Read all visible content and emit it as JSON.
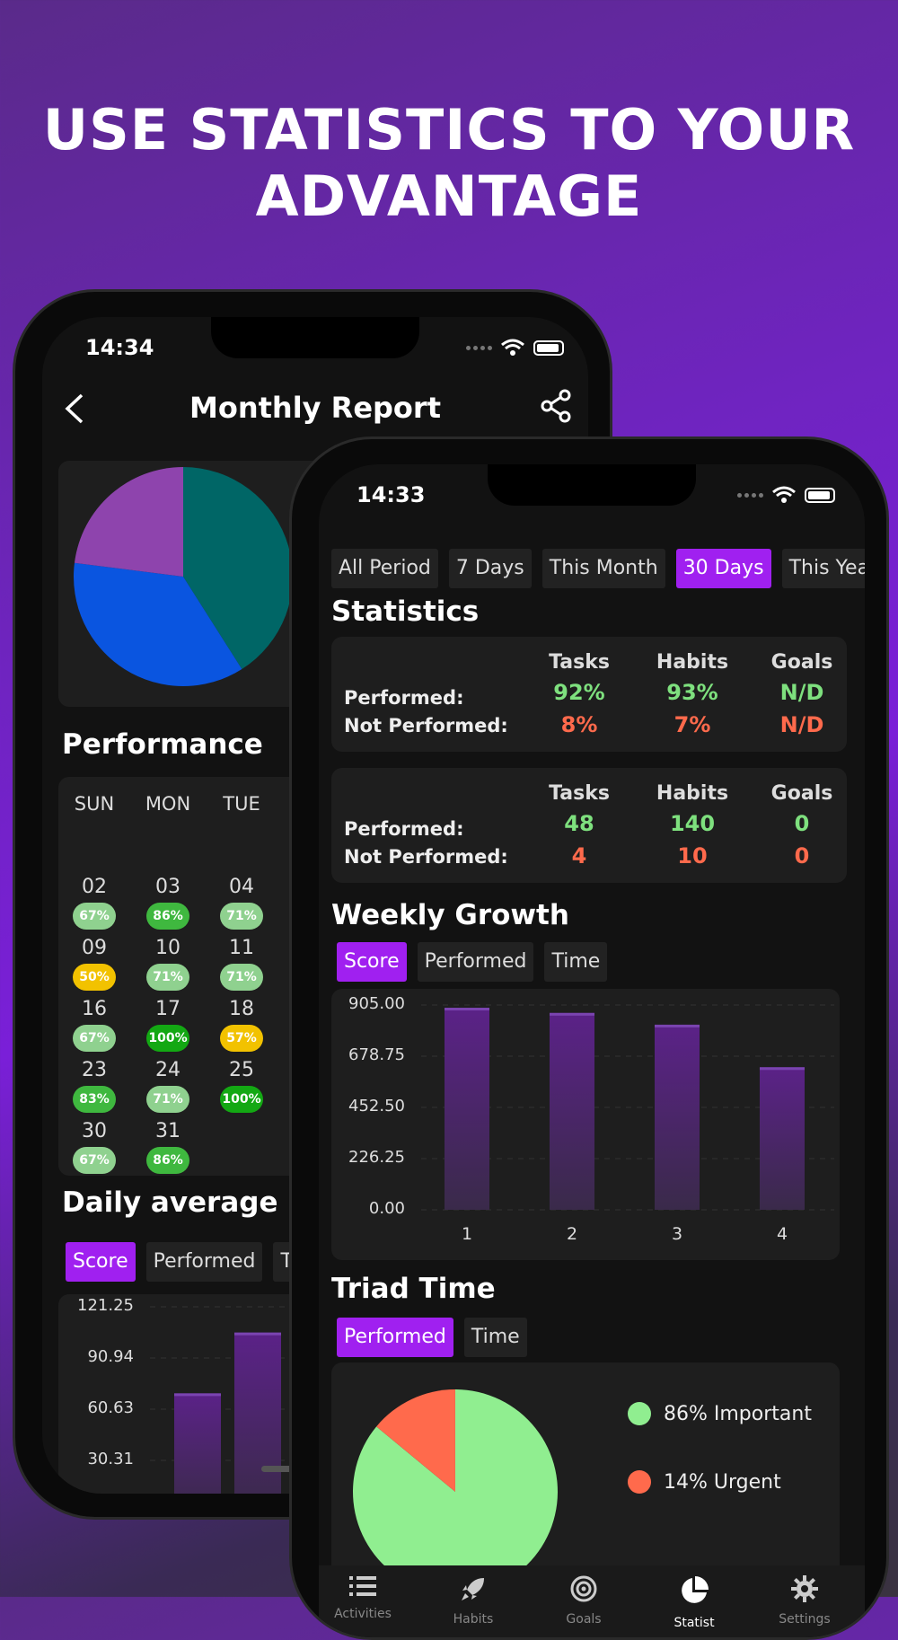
{
  "headline": {
    "line1": "USE STATISTICS TO YOUR",
    "line2": "ADVANTAGE"
  },
  "back_phone": {
    "status_time": "14:34",
    "header_title": "Monthly Report",
    "pie": {
      "slices": [
        {
          "value": 41,
          "color": "#006666"
        },
        {
          "value": 36,
          "color": "#0a55e0"
        },
        {
          "value": 23,
          "color": "#8e44ad"
        }
      ]
    },
    "performance_title": "Performance",
    "weekday_headers": [
      "SUN",
      "MON",
      "TUE"
    ],
    "calendar": [
      [
        {
          "day": "02",
          "pct": "67%",
          "color": "#8fd18f"
        },
        {
          "day": "03",
          "pct": "86%",
          "color": "#3fb83f"
        },
        {
          "day": "04",
          "pct": "71%",
          "color": "#8fd18f"
        }
      ],
      [
        {
          "day": "09",
          "pct": "50%",
          "color": "#f2c200"
        },
        {
          "day": "10",
          "pct": "71%",
          "color": "#8fd18f"
        },
        {
          "day": "11",
          "pct": "71%",
          "color": "#8fd18f"
        }
      ],
      [
        {
          "day": "16",
          "pct": "67%",
          "color": "#8fd18f"
        },
        {
          "day": "17",
          "pct": "100%",
          "color": "#13a813"
        },
        {
          "day": "18",
          "pct": "57%",
          "color": "#f2c200"
        }
      ],
      [
        {
          "day": "23",
          "pct": "83%",
          "color": "#3fb83f"
        },
        {
          "day": "24",
          "pct": "71%",
          "color": "#8fd18f"
        },
        {
          "day": "25",
          "pct": "100%",
          "color": "#13a813"
        }
      ],
      [
        {
          "day": "30",
          "pct": "67%",
          "color": "#8fd18f"
        },
        {
          "day": "31",
          "pct": "86%",
          "color": "#3fb83f"
        }
      ]
    ],
    "daily_average_title": "Daily average",
    "chips": [
      "Score",
      "Performed",
      "Ti"
    ],
    "chart_data": {
      "type": "bar",
      "yticks": [
        "121.25",
        "90.94",
        "60.63",
        "30.31"
      ],
      "ylim": [
        0,
        121.25
      ],
      "values": [
        70,
        106
      ]
    }
  },
  "front_phone": {
    "status_time": "14:33",
    "period_tabs": [
      "All Period",
      "7 Days",
      "This Month",
      "30 Days",
      "This Yea"
    ],
    "statistics_title": "Statistics",
    "columns": [
      "Tasks",
      "Habits",
      "Goals"
    ],
    "row_performed": "Performed:",
    "row_not_performed": "Not Performed:",
    "percent_card": {
      "performed": [
        "92%",
        "93%",
        "N/D"
      ],
      "not_performed": [
        "8%",
        "7%",
        "N/D"
      ]
    },
    "count_card": {
      "performed": [
        "48",
        "140",
        "0"
      ],
      "not_performed": [
        "4",
        "10",
        "0"
      ]
    },
    "weekly_growth_title": "Weekly Growth",
    "wg_chips": [
      "Score",
      "Performed",
      "Time"
    ],
    "chart_data": {
      "type": "bar",
      "categories": [
        "1",
        "2",
        "3",
        "4"
      ],
      "values": [
        893,
        870,
        818,
        630
      ],
      "yticks": [
        "905.00",
        "678.75",
        "452.50",
        "226.25",
        "0.00"
      ],
      "ylim": [
        0,
        905
      ]
    },
    "triad_title": "Triad Time",
    "triad_chips": [
      "Performed",
      "Time"
    ],
    "triad_pie": {
      "type": "pie",
      "slices": [
        {
          "label": "86% Important",
          "value": 86,
          "color": "#90ee90"
        },
        {
          "label": "14% Urgent",
          "value": 14,
          "color": "#ff6a4c"
        }
      ]
    },
    "nav": [
      {
        "label": "Activities",
        "icon": "list-icon"
      },
      {
        "label": "Habits",
        "icon": "rocket-icon"
      },
      {
        "label": "Goals",
        "icon": "target-icon"
      },
      {
        "label": "Statist",
        "icon": "pie-chart-icon"
      },
      {
        "label": "Settings",
        "icon": "gear-icon"
      }
    ]
  }
}
